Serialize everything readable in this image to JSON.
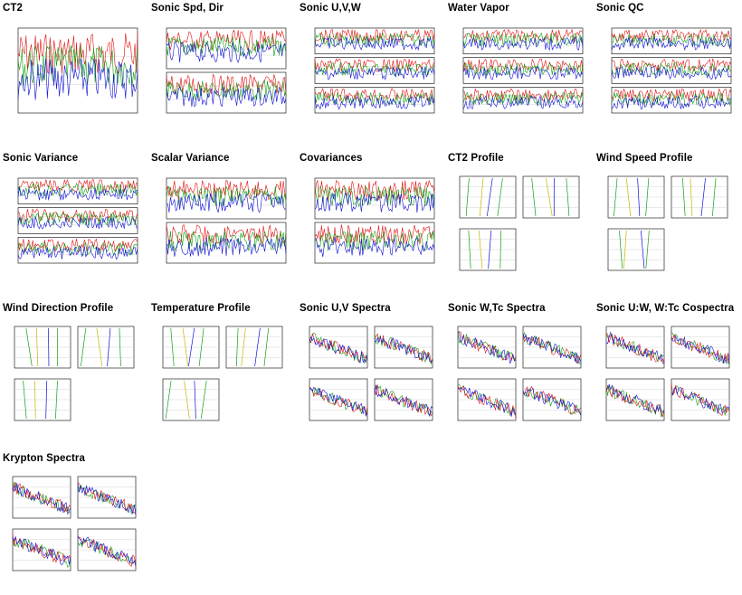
{
  "gallery": {
    "items": [
      {
        "title": "CT2",
        "kind": "ts1"
      },
      {
        "title": "Sonic Spd, Dir",
        "kind": "ts2"
      },
      {
        "title": "Sonic U,V,W",
        "kind": "ts3"
      },
      {
        "title": "Water Vapor",
        "kind": "ts3"
      },
      {
        "title": "Sonic QC",
        "kind": "ts3"
      },
      {
        "title": "Sonic Variance",
        "kind": "ts3"
      },
      {
        "title": "Scalar Variance",
        "kind": "ts2"
      },
      {
        "title": "Covariances",
        "kind": "ts2"
      },
      {
        "title": "CT2 Profile",
        "kind": "prof"
      },
      {
        "title": "Wind Speed Profile",
        "kind": "prof"
      },
      {
        "title": "Wind Direction Profile",
        "kind": "prof"
      },
      {
        "title": "Temperature Profile",
        "kind": "prof"
      },
      {
        "title": "Sonic U,V Spectra",
        "kind": "spec"
      },
      {
        "title": "Sonic W,Tc Spectra",
        "kind": "spec"
      },
      {
        "title": "Sonic U:W, W:Tc Cospectra",
        "kind": "spec"
      },
      {
        "title": "Krypton Spectra",
        "kind": "spec"
      }
    ]
  },
  "colors": {
    "blue": "#1010d8",
    "red": "#e01010",
    "green": "#10a010",
    "yellow": "#c8b400",
    "axis": "#000000",
    "grid": "#bbbbbb"
  }
}
